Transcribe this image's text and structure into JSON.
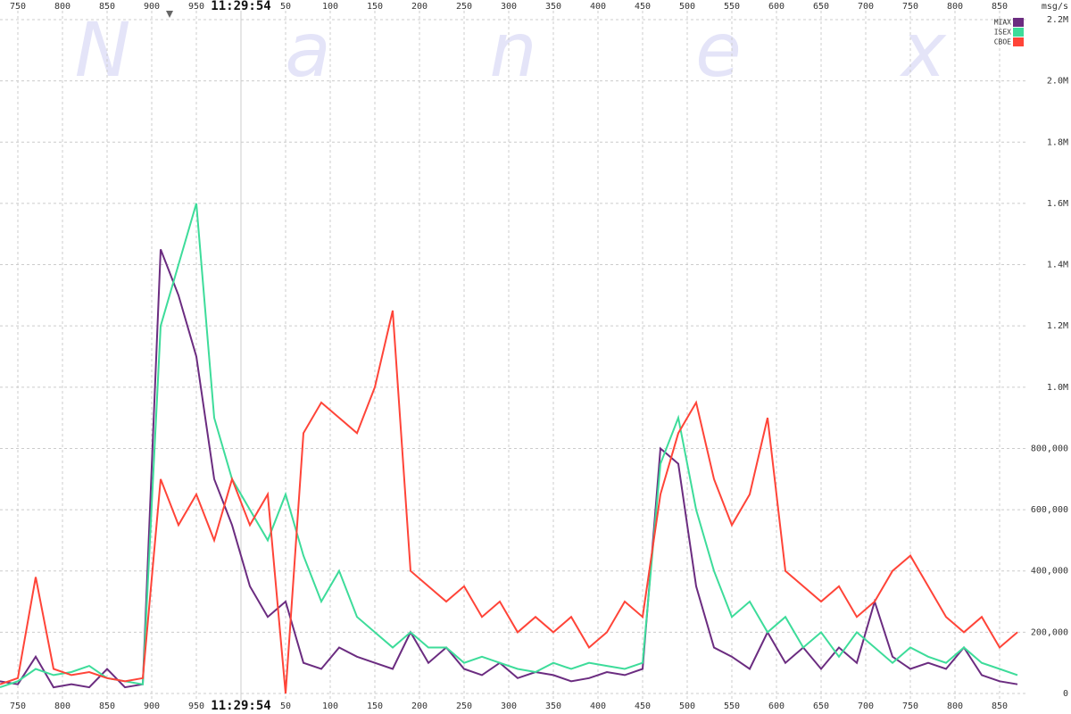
{
  "chart_data": {
    "type": "line",
    "watermark": [
      "N",
      "a",
      "n",
      "e",
      "x"
    ],
    "y_label": "msg/s",
    "xlim": [
      -270,
      880
    ],
    "ylim": [
      0,
      2200000
    ],
    "grid": true,
    "legend": "top-right",
    "xticks": [
      {
        "value": -250,
        "label": "750"
      },
      {
        "value": -200,
        "label": "800"
      },
      {
        "value": -150,
        "label": "850"
      },
      {
        "value": -100,
        "label": "900"
      },
      {
        "value": -50,
        "label": "950"
      },
      {
        "value": 0,
        "label": "11:29:54"
      },
      50,
      100,
      150,
      200,
      250,
      300,
      350,
      400,
      450,
      500,
      550,
      600,
      650,
      700,
      750,
      800,
      850
    ],
    "yticks": [
      0,
      {
        "value": 200000,
        "label": "200,000"
      },
      {
        "value": 400000,
        "label": "400,000"
      },
      {
        "value": 600000,
        "label": "600,000"
      },
      {
        "value": 800000,
        "label": "800,000"
      },
      {
        "value": 1000000,
        "label": "1.0M"
      },
      {
        "value": 1200000,
        "label": "1.2M"
      },
      {
        "value": 1400000,
        "label": "1.4M"
      },
      {
        "value": 1600000,
        "label": "1.6M"
      },
      {
        "value": 1800000,
        "label": "1.8M"
      },
      {
        "value": 2000000,
        "label": "2.0M"
      },
      {
        "value": 2200000,
        "label": "2.2M"
      }
    ],
    "x": [
      -270,
      -250,
      -230,
      -210,
      -190,
      -170,
      -150,
      -130,
      -110,
      -90,
      -70,
      -50,
      -30,
      -10,
      10,
      30,
      50,
      70,
      90,
      110,
      130,
      150,
      170,
      190,
      210,
      230,
      250,
      270,
      290,
      310,
      330,
      350,
      370,
      390,
      410,
      430,
      450,
      470,
      490,
      510,
      530,
      550,
      570,
      590,
      610,
      630,
      650,
      670,
      690,
      710,
      730,
      750,
      770,
      790,
      810,
      830,
      850,
      870
    ],
    "series": [
      {
        "name": "MIAX",
        "color": "#6b2c80",
        "values": [
          40000,
          30000,
          120000,
          20000,
          30000,
          20000,
          80000,
          20000,
          30000,
          1450000,
          1300000,
          1100000,
          700000,
          550000,
          350000,
          250000,
          300000,
          100000,
          80000,
          150000,
          120000,
          100000,
          80000,
          200000,
          100000,
          150000,
          80000,
          60000,
          100000,
          50000,
          70000,
          60000,
          40000,
          50000,
          70000,
          60000,
          80000,
          800000,
          750000,
          350000,
          150000,
          120000,
          80000,
          200000,
          100000,
          150000,
          80000,
          150000,
          100000,
          300000,
          120000,
          80000,
          100000,
          80000,
          150000,
          60000,
          40000,
          30000
        ]
      },
      {
        "name": "ISEX",
        "color": "#3ddc9a",
        "values": [
          20000,
          40000,
          80000,
          60000,
          70000,
          90000,
          50000,
          40000,
          30000,
          1200000,
          1400000,
          1600000,
          900000,
          700000,
          600000,
          500000,
          650000,
          450000,
          300000,
          400000,
          250000,
          200000,
          150000,
          200000,
          150000,
          150000,
          100000,
          120000,
          100000,
          80000,
          70000,
          100000,
          80000,
          100000,
          90000,
          80000,
          100000,
          750000,
          900000,
          600000,
          400000,
          250000,
          300000,
          200000,
          250000,
          150000,
          200000,
          120000,
          200000,
          150000,
          100000,
          150000,
          120000,
          100000,
          150000,
          100000,
          80000,
          60000
        ]
      },
      {
        "name": "CBOE",
        "color": "#ff4438",
        "values": [
          30000,
          50000,
          380000,
          80000,
          60000,
          70000,
          50000,
          40000,
          50000,
          700000,
          550000,
          650000,
          500000,
          700000,
          550000,
          650000,
          0,
          850000,
          950000,
          900000,
          850000,
          1000000,
          1250000,
          400000,
          350000,
          300000,
          350000,
          250000,
          300000,
          200000,
          250000,
          200000,
          250000,
          150000,
          200000,
          300000,
          250000,
          650000,
          850000,
          950000,
          700000,
          550000,
          650000,
          900000,
          400000,
          350000,
          300000,
          350000,
          250000,
          300000,
          400000,
          450000,
          350000,
          250000,
          200000,
          250000,
          150000,
          200000
        ]
      }
    ]
  }
}
